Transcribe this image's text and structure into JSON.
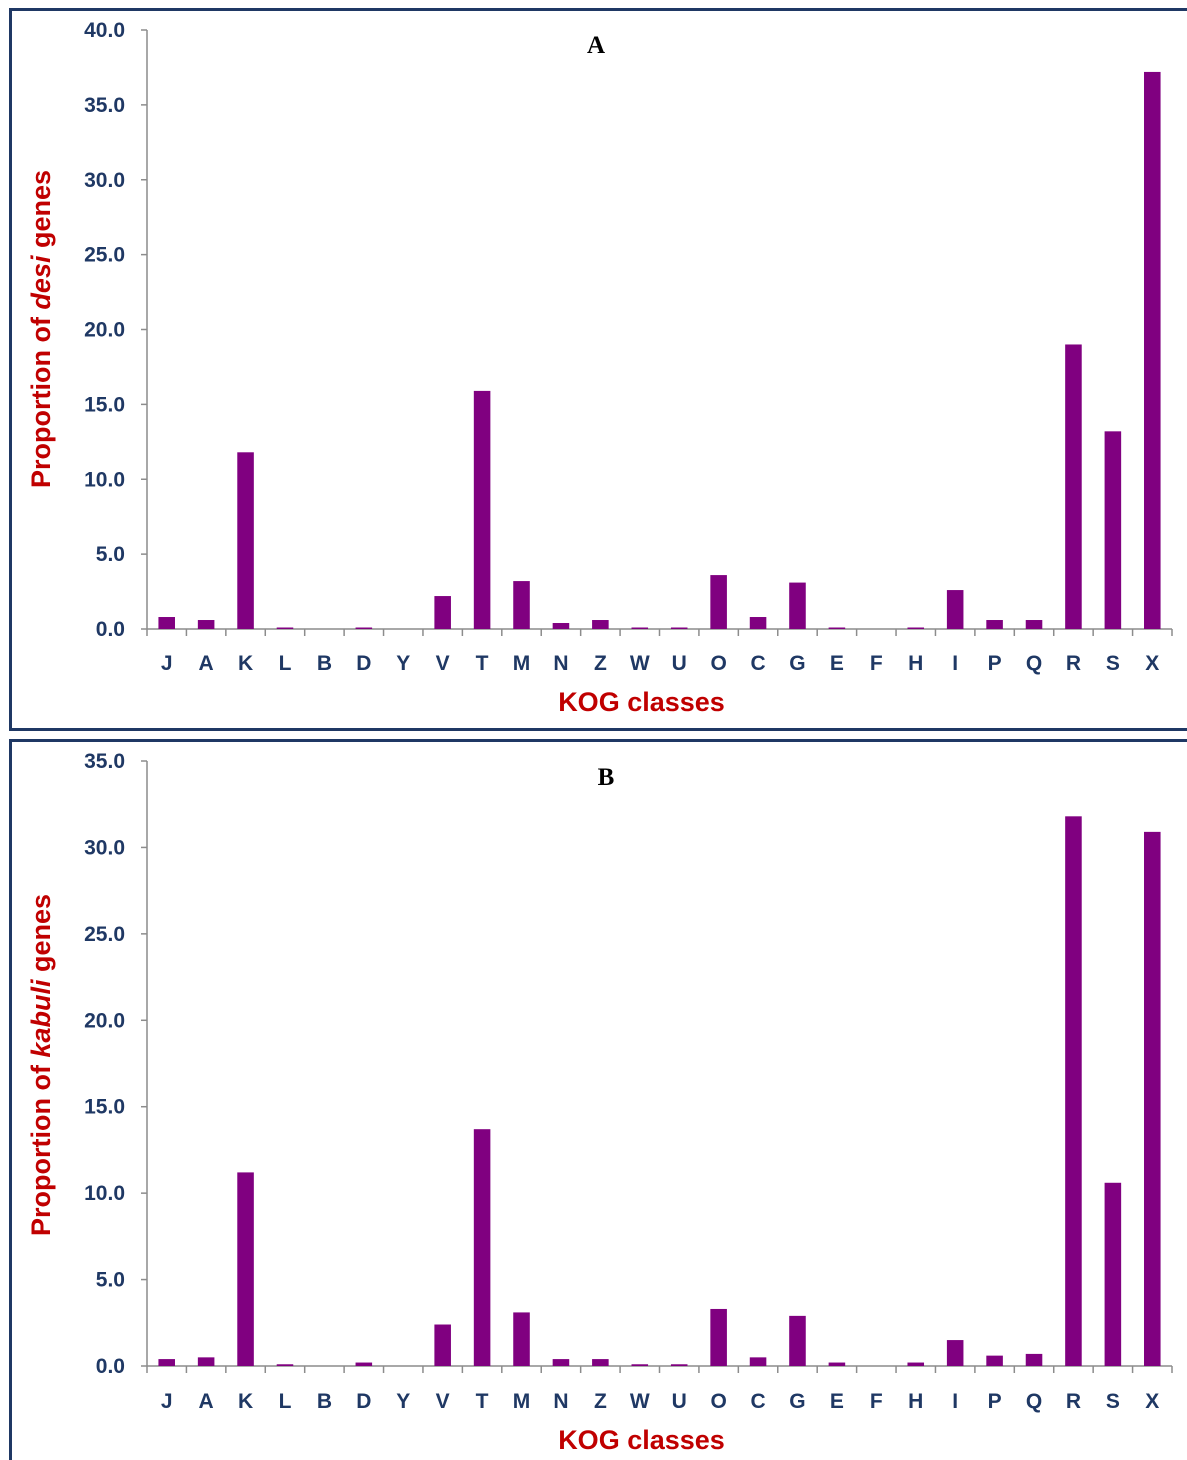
{
  "chart_data": [
    {
      "type": "bar",
      "title": "A",
      "xlabel": "KOG classes",
      "ylabel_parts": [
        "Proportion of ",
        "desi",
        " genes"
      ],
      "ylim": [
        0,
        40
      ],
      "yticks": [
        "0.0",
        "5.0",
        "10.0",
        "15.0",
        "20.0",
        "25.0",
        "30.0",
        "35.0",
        "40.0"
      ],
      "categories": [
        "J",
        "A",
        "K",
        "L",
        "B",
        "D",
        "Y",
        "V",
        "T",
        "M",
        "N",
        "Z",
        "W",
        "U",
        "O",
        "C",
        "G",
        "E",
        "F",
        "H",
        "I",
        "P",
        "Q",
        "R",
        "S",
        "X"
      ],
      "values": [
        0.8,
        0.6,
        11.8,
        0.1,
        0.0,
        0.1,
        0.0,
        2.2,
        15.9,
        3.2,
        0.4,
        0.6,
        0.1,
        0.1,
        3.6,
        0.8,
        3.1,
        0.1,
        0.0,
        0.1,
        2.6,
        0.6,
        0.6,
        19.0,
        13.2,
        37.2
      ],
      "bar_color": "#800080",
      "grid": false
    },
    {
      "type": "bar",
      "title": "B",
      "xlabel": "KOG classes",
      "ylabel_parts": [
        "Proportion of ",
        "kabuli",
        " genes"
      ],
      "ylim": [
        0,
        35
      ],
      "yticks": [
        "0.0",
        "5.0",
        "10.0",
        "15.0",
        "20.0",
        "25.0",
        "30.0",
        "35.0"
      ],
      "categories": [
        "J",
        "A",
        "K",
        "L",
        "B",
        "D",
        "Y",
        "V",
        "T",
        "M",
        "N",
        "Z",
        "W",
        "U",
        "O",
        "C",
        "G",
        "E",
        "F",
        "H",
        "I",
        "P",
        "Q",
        "R",
        "S",
        "X"
      ],
      "values": [
        0.4,
        0.5,
        11.2,
        0.1,
        0.0,
        0.2,
        0.0,
        2.4,
        13.7,
        3.1,
        0.4,
        0.4,
        0.1,
        0.1,
        3.3,
        0.5,
        2.9,
        0.2,
        0.0,
        0.2,
        1.5,
        0.6,
        0.7,
        31.8,
        10.6,
        30.9
      ],
      "bar_color": "#800080",
      "grid": false
    }
  ]
}
